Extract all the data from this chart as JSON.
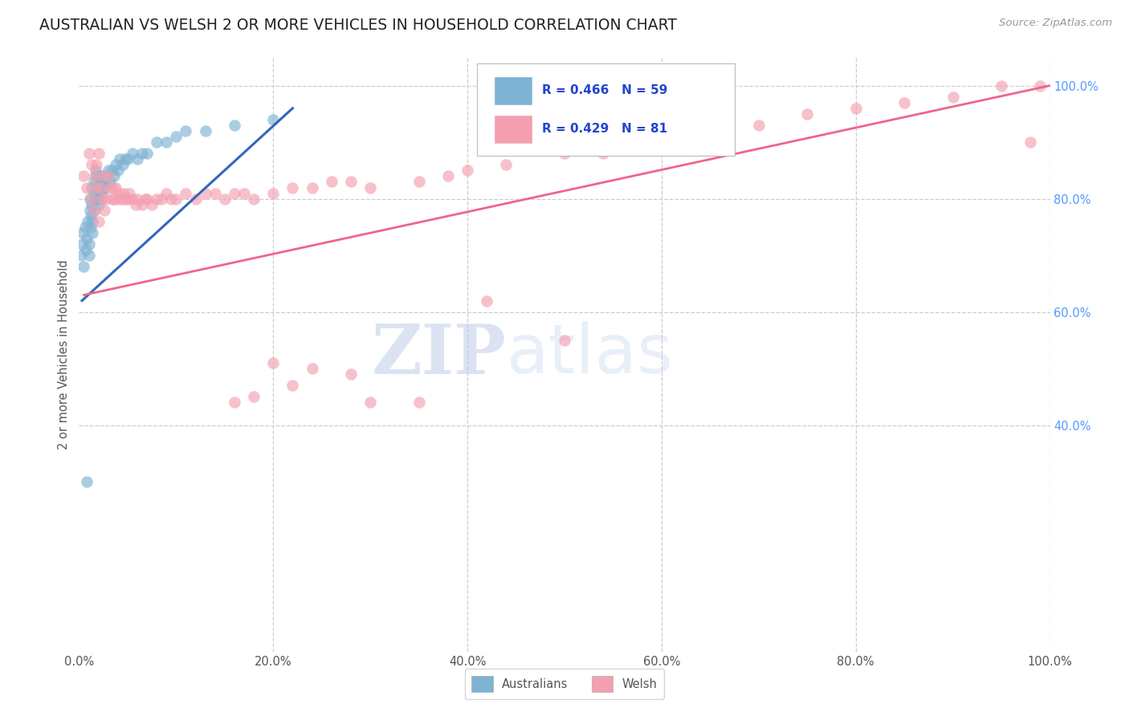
{
  "title": "AUSTRALIAN VS WELSH 2 OR MORE VEHICLES IN HOUSEHOLD CORRELATION CHART",
  "source": "Source: ZipAtlas.com",
  "ylabel": "2 or more Vehicles in Household",
  "watermark_zip": "ZIP",
  "watermark_atlas": "atlas",
  "legend_blue_label": "R = 0.466   N = 59",
  "legend_pink_label": "R = 0.429   N = 81",
  "blue_color": "#7FB3D3",
  "pink_color": "#F4A0B0",
  "blue_line_color": "#3366BB",
  "pink_line_color": "#EE6688",
  "grid_color": "#CCCCCC",
  "right_tick_color": "#5599FF",
  "blue_x": [
    0.002,
    0.003,
    0.004,
    0.005,
    0.006,
    0.007,
    0.008,
    0.009,
    0.01,
    0.01,
    0.011,
    0.011,
    0.012,
    0.012,
    0.013,
    0.013,
    0.014,
    0.014,
    0.015,
    0.015,
    0.016,
    0.016,
    0.017,
    0.018,
    0.018,
    0.019,
    0.02,
    0.02,
    0.021,
    0.022,
    0.022,
    0.023,
    0.024,
    0.025,
    0.026,
    0.027,
    0.028,
    0.03,
    0.032,
    0.034,
    0.036,
    0.038,
    0.04,
    0.042,
    0.045,
    0.048,
    0.05,
    0.055,
    0.06,
    0.065,
    0.07,
    0.08,
    0.09,
    0.1,
    0.11,
    0.13,
    0.16,
    0.2,
    0.008
  ],
  "blue_y": [
    0.7,
    0.72,
    0.74,
    0.68,
    0.75,
    0.71,
    0.73,
    0.76,
    0.7,
    0.72,
    0.78,
    0.8,
    0.75,
    0.77,
    0.82,
    0.79,
    0.74,
    0.76,
    0.81,
    0.83,
    0.78,
    0.8,
    0.85,
    0.82,
    0.84,
    0.8,
    0.79,
    0.81,
    0.83,
    0.8,
    0.82,
    0.84,
    0.81,
    0.83,
    0.82,
    0.84,
    0.83,
    0.85,
    0.83,
    0.85,
    0.84,
    0.86,
    0.85,
    0.87,
    0.86,
    0.87,
    0.87,
    0.88,
    0.87,
    0.88,
    0.88,
    0.9,
    0.9,
    0.91,
    0.92,
    0.92,
    0.93,
    0.94,
    0.3
  ],
  "pink_x": [
    0.005,
    0.008,
    0.01,
    0.012,
    0.013,
    0.015,
    0.016,
    0.017,
    0.018,
    0.02,
    0.02,
    0.022,
    0.024,
    0.025,
    0.026,
    0.028,
    0.03,
    0.032,
    0.034,
    0.035,
    0.036,
    0.038,
    0.04,
    0.042,
    0.044,
    0.046,
    0.048,
    0.05,
    0.052,
    0.055,
    0.058,
    0.06,
    0.065,
    0.068,
    0.07,
    0.075,
    0.08,
    0.085,
    0.09,
    0.095,
    0.1,
    0.11,
    0.12,
    0.13,
    0.14,
    0.15,
    0.16,
    0.17,
    0.18,
    0.2,
    0.22,
    0.24,
    0.26,
    0.28,
    0.3,
    0.35,
    0.38,
    0.4,
    0.44,
    0.5,
    0.54,
    0.6,
    0.65,
    0.7,
    0.75,
    0.8,
    0.85,
    0.9,
    0.95,
    0.99,
    0.18,
    0.22,
    0.16,
    0.3,
    0.42,
    0.5,
    0.2,
    0.24,
    0.28,
    0.35,
    0.98
  ],
  "pink_y": [
    0.84,
    0.82,
    0.88,
    0.8,
    0.86,
    0.78,
    0.84,
    0.82,
    0.86,
    0.88,
    0.76,
    0.82,
    0.8,
    0.84,
    0.78,
    0.8,
    0.84,
    0.82,
    0.8,
    0.82,
    0.8,
    0.82,
    0.8,
    0.81,
    0.8,
    0.81,
    0.8,
    0.8,
    0.81,
    0.8,
    0.79,
    0.8,
    0.79,
    0.8,
    0.8,
    0.79,
    0.8,
    0.8,
    0.81,
    0.8,
    0.8,
    0.81,
    0.8,
    0.81,
    0.81,
    0.8,
    0.81,
    0.81,
    0.8,
    0.81,
    0.82,
    0.82,
    0.83,
    0.83,
    0.82,
    0.83,
    0.84,
    0.85,
    0.86,
    0.88,
    0.88,
    0.9,
    0.92,
    0.93,
    0.95,
    0.96,
    0.97,
    0.98,
    1.0,
    1.0,
    0.45,
    0.47,
    0.44,
    0.44,
    0.62,
    0.55,
    0.51,
    0.5,
    0.49,
    0.44,
    0.9
  ],
  "blue_line_x": [
    0.003,
    0.22
  ],
  "blue_line_y": [
    0.62,
    0.96
  ],
  "pink_line_x": [
    0.005,
    1.0
  ],
  "pink_line_y": [
    0.63,
    1.0
  ],
  "xmin": 0.0,
  "xmax": 1.0,
  "ymin": 0.0,
  "ymax": 1.05,
  "ytick_right_positions": [
    0.4,
    0.6,
    0.8,
    1.0
  ],
  "ytick_right_labels": [
    "40.0%",
    "60.0%",
    "80.0%",
    "100.0%"
  ],
  "xtick_positions": [
    0.0,
    0.2,
    0.4,
    0.6,
    0.8,
    1.0
  ],
  "xtick_labels": [
    "0.0%",
    "20.0%",
    "40.0%",
    "60.0%",
    "80.0%",
    "100.0%"
  ]
}
